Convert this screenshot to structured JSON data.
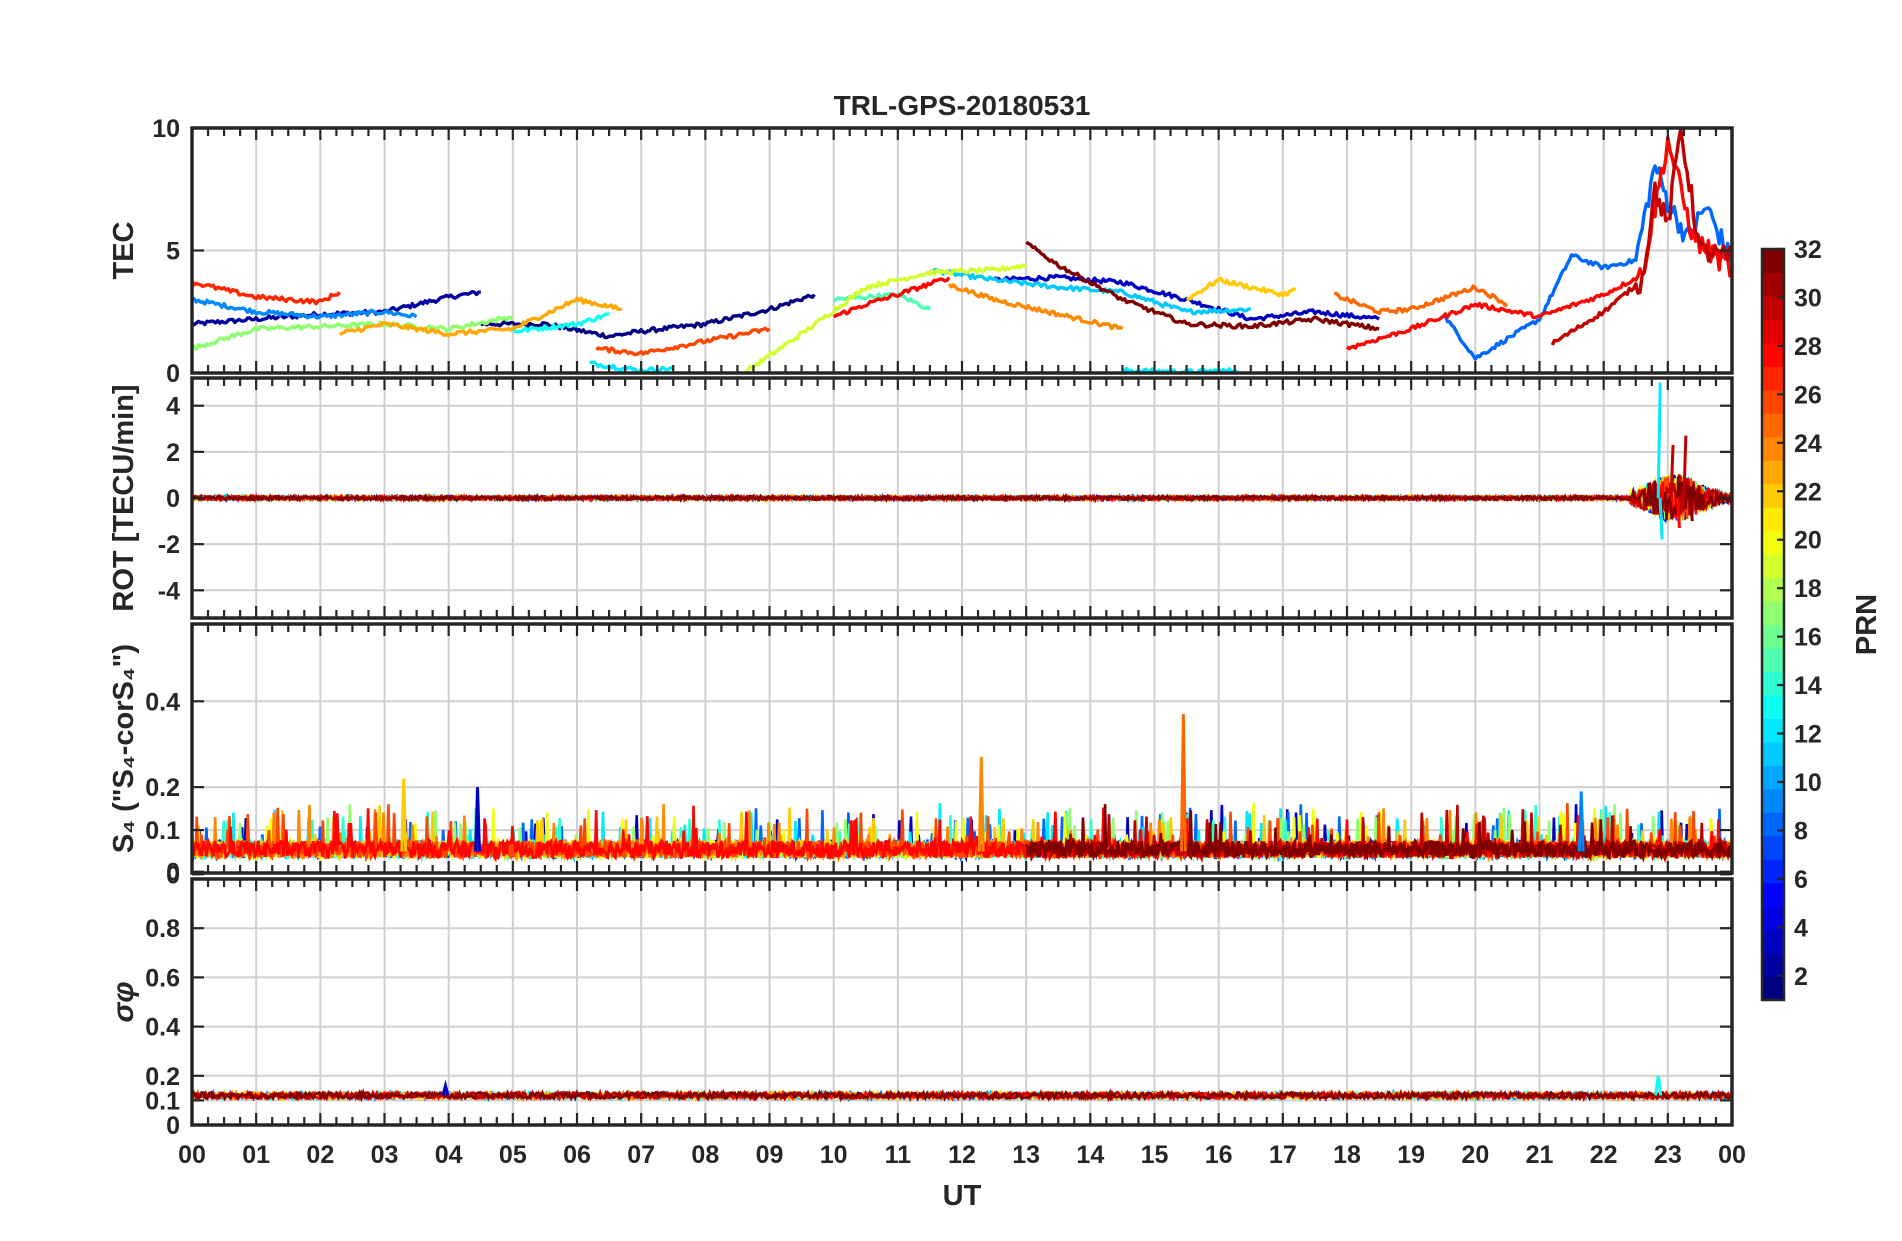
{
  "chart_data": {
    "type": "line",
    "title": "TRL-GPS-20180531",
    "xlabel": "UT",
    "x_ticks": [
      "00",
      "01",
      "02",
      "03",
      "04",
      "05",
      "06",
      "07",
      "08",
      "09",
      "10",
      "11",
      "12",
      "13",
      "14",
      "15",
      "16",
      "17",
      "18",
      "19",
      "20",
      "21",
      "22",
      "23",
      "00"
    ],
    "xlim": [
      0,
      24
    ],
    "grid": true,
    "colormap": "jet",
    "panels": [
      {
        "id": "tec",
        "ylabel": "TEC",
        "ylim": [
          0,
          10
        ],
        "yticks": [
          "0",
          "5",
          "10"
        ],
        "series": [
          {
            "prn": 2,
            "x": [
              0.0,
              1.0,
              2.0,
              3.0,
              4.0,
              4.5
            ],
            "y": [
              2.0,
              2.2,
              2.4,
              2.5,
              3.1,
              3.3
            ]
          },
          {
            "prn": 1,
            "x": [
              4.5,
              5.5,
              6.5,
              7.0,
              8.0,
              9.0,
              9.7
            ],
            "y": [
              2.0,
              2.0,
              1.5,
              1.7,
              2.0,
              2.6,
              3.2
            ]
          },
          {
            "prn": 3,
            "x": [
              12.5,
              13.5,
              14.5,
              15.5,
              16.5,
              17.5,
              18.5
            ],
            "y": [
              3.8,
              3.9,
              3.7,
              3.0,
              2.2,
              2.5,
              2.2
            ]
          },
          {
            "prn": 9,
            "x": [
              0.0,
              1.0,
              2.0,
              3.0,
              3.5
            ],
            "y": [
              3.0,
              2.5,
              2.3,
              2.5,
              2.3
            ]
          },
          {
            "prn": 11,
            "x": [
              11.5,
              12.5,
              13.5,
              14.5,
              15.5,
              16.5
            ],
            "y": [
              4.2,
              3.8,
              3.5,
              3.3,
              2.5,
              2.6
            ]
          },
          {
            "prn": 13,
            "x": [
              5.0,
              6.0,
              6.5
            ],
            "y": [
              1.7,
              2.0,
              2.4
            ]
          },
          {
            "prn": 12,
            "x": [
              6.2,
              7.0,
              7.5
            ],
            "y": [
              0.4,
              0.1,
              0.2
            ]
          },
          {
            "prn": 12,
            "x": [
              14.5,
              15.5,
              16.3
            ],
            "y": [
              0.1,
              0.05,
              0.1
            ]
          },
          {
            "prn": 8,
            "x": [
              19.5,
              20.0,
              21.0,
              21.5,
              22.0,
              22.5,
              22.8,
              23.0,
              23.3,
              23.6,
              24.0
            ],
            "y": [
              2.4,
              0.6,
              2.2,
              4.8,
              4.3,
              4.6,
              8.5,
              7.0,
              5.5,
              6.8,
              4.5
            ]
          },
          {
            "prn": 15,
            "x": [
              10.0,
              11.0,
              11.5
            ],
            "y": [
              3.0,
              3.2,
              2.6
            ]
          },
          {
            "prn": 17,
            "x": [
              0.0,
              1.0,
              2.0,
              3.0,
              4.0,
              5.0
            ],
            "y": [
              1.0,
              1.8,
              1.9,
              2.0,
              1.8,
              2.3
            ]
          },
          {
            "prn": 19,
            "x": [
              8.6,
              9.5,
              10.5,
              11.5,
              12.5,
              13.0
            ],
            "y": [
              0.0,
              1.6,
              3.5,
              4.1,
              4.2,
              4.4
            ]
          },
          {
            "prn": 22,
            "x": [
              15.5,
              16.0,
              17.0,
              17.2
            ],
            "y": [
              3.0,
              3.8,
              3.2,
              3.4
            ]
          },
          {
            "prn": 23,
            "x": [
              2.3,
              3.0,
              4.0,
              5.0,
              6.0,
              6.7
            ],
            "y": [
              1.6,
              2.0,
              1.6,
              1.8,
              3.0,
              2.6
            ]
          },
          {
            "prn": 24,
            "x": [
              11.8,
              12.5,
              13.5,
              14.5
            ],
            "y": [
              3.6,
              3.0,
              2.4,
              1.8
            ]
          },
          {
            "prn": 25,
            "x": [
              17.8,
              18.5,
              19.0,
              20.0,
              20.5
            ],
            "y": [
              3.2,
              2.5,
              2.6,
              3.5,
              2.8
            ]
          },
          {
            "prn": 27,
            "x": [
              0.0,
              1.0,
              2.0,
              2.3
            ],
            "y": [
              3.7,
              3.1,
              2.9,
              3.3
            ]
          },
          {
            "prn": 26,
            "x": [
              6.3,
              7.0,
              8.0,
              9.0
            ],
            "y": [
              1.0,
              0.8,
              1.3,
              1.8
            ]
          },
          {
            "prn": 28,
            "x": [
              10.0,
              10.5,
              11.0,
              11.8
            ],
            "y": [
              2.3,
              2.8,
              3.2,
              3.9
            ]
          },
          {
            "prn": 28,
            "x": [
              18.0,
              19.0,
              20.0,
              21.0,
              22.0,
              22.6,
              23.0,
              23.4,
              24.0
            ],
            "y": [
              1.0,
              1.8,
              2.8,
              2.3,
              3.2,
              4.0,
              9.5,
              5.5,
              4.2
            ]
          },
          {
            "prn": 32,
            "x": [
              13.0,
              13.5,
              14.5,
              15.5,
              16.5,
              17.5,
              18.5
            ],
            "y": [
              5.3,
              4.4,
              3.0,
              2.0,
              1.9,
              2.2,
              1.8
            ]
          },
          {
            "prn": 30,
            "x": [
              21.2,
              22.0,
              22.6,
              22.8,
              23.0,
              23.2,
              23.5,
              24.0
            ],
            "y": [
              1.2,
              2.5,
              3.8,
              7.5,
              6.0,
              10.0,
              5.0,
              4.7
            ]
          }
        ]
      },
      {
        "id": "rot",
        "ylabel": "ROT [TECU/min]",
        "ylim": [
          -5.2,
          5.2
        ],
        "yticks": [
          "-4",
          "-2",
          "0",
          "2",
          "4"
        ],
        "spikes": [
          {
            "prn": 12,
            "x": 22.85,
            "y": 5.0
          },
          {
            "prn": 12,
            "x": 22.88,
            "y": -1.8
          },
          {
            "prn": 30,
            "x": 23.05,
            "y": 2.3
          },
          {
            "prn": 30,
            "x": 23.25,
            "y": 2.7
          },
          {
            "prn": 28,
            "x": 23.15,
            "y": -1.3
          },
          {
            "prn": 32,
            "x": 23.35,
            "y": -1.0
          }
        ]
      },
      {
        "id": "s4",
        "ylabel": "S₄ (\"S₄-corS₄\")",
        "ylim": [
          0,
          0.58
        ],
        "yticks": [
          "0",
          "0",
          "0.1",
          "0.2",
          "0.4"
        ],
        "spikes": [
          {
            "prn": 22,
            "x": 3.3,
            "y": 0.22
          },
          {
            "prn": 3,
            "x": 4.45,
            "y": 0.2
          },
          {
            "prn": 24,
            "x": 12.3,
            "y": 0.27
          },
          {
            "prn": 25,
            "x": 15.45,
            "y": 0.37
          },
          {
            "prn": 9,
            "x": 21.65,
            "y": 0.19
          }
        ]
      },
      {
        "id": "sigma",
        "ylabel": "σφ",
        "ylim": [
          0,
          1.0
        ],
        "yticks": [
          "0",
          "0.1",
          "0.2",
          "0.4",
          "0.6",
          "0.8"
        ],
        "baseline": 0.12,
        "spikes": [
          {
            "prn": 3,
            "x": 3.95,
            "y": 0.16
          },
          {
            "prn": 13,
            "x": 22.85,
            "y": 0.2
          }
        ]
      }
    ],
    "colorbar": {
      "label": "PRN",
      "range": [
        1,
        32
      ],
      "ticks": [
        "2",
        "4",
        "6",
        "8",
        "10",
        "12",
        "14",
        "16",
        "18",
        "20",
        "22",
        "24",
        "26",
        "28",
        "30",
        "32"
      ]
    }
  }
}
